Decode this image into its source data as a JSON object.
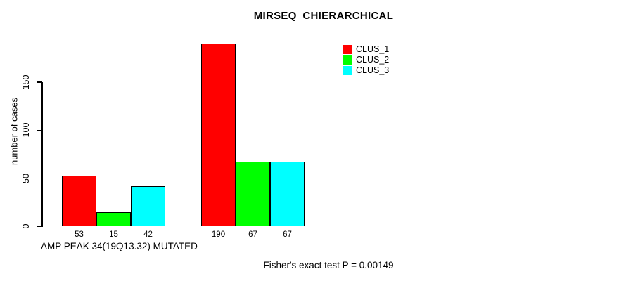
{
  "chart_data": {
    "type": "bar",
    "title": "MIRSEQ_CHIERARCHICAL",
    "ylabel": "number of cases",
    "group_labels": [
      "AMP PEAK 34(19Q13.32) MUTATED",
      ""
    ],
    "yticks": [
      0,
      50,
      100,
      150
    ],
    "ylim": [
      0,
      190
    ],
    "grid": false,
    "series": [
      {
        "name": "CLUS_1",
        "color": "#ff0000",
        "values": [
          53,
          190
        ]
      },
      {
        "name": "CLUS_2",
        "color": "#00ff00",
        "values": [
          15,
          67
        ]
      },
      {
        "name": "CLUS_3",
        "color": "#00ffff",
        "values": [
          42,
          67
        ]
      }
    ],
    "bar_value_labels": [
      [
        53,
        15,
        42
      ],
      [
        190,
        67,
        67
      ]
    ],
    "legend_position": "top-right",
    "annotation": "Fisher's exact test P = 0.00149",
    "background": "#ffffff",
    "axis_color": "#000000"
  }
}
